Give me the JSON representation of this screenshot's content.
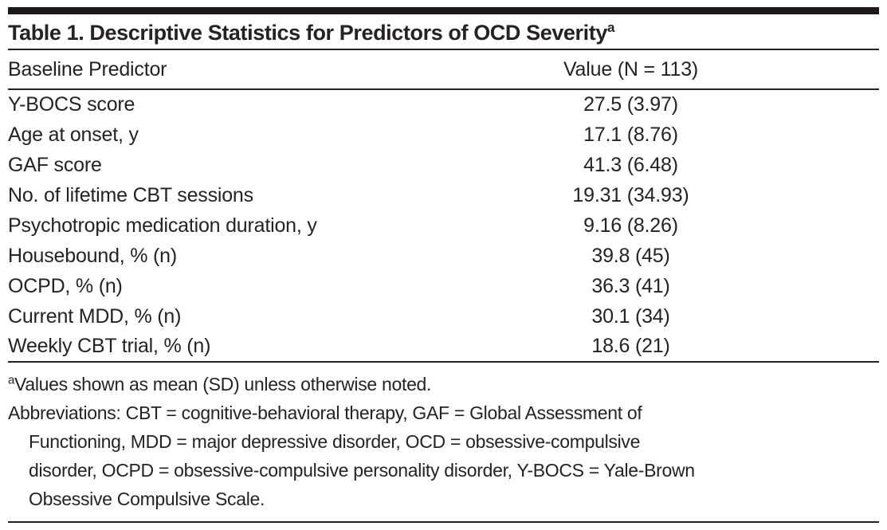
{
  "table": {
    "title": "Table 1. Descriptive Statistics for Predictors of OCD Severity",
    "title_superscript": "a",
    "columns": [
      "Baseline Predictor",
      "Value (N = 113)"
    ],
    "rows": [
      {
        "label": "Y-BOCS score",
        "value": "27.5 (3.97)"
      },
      {
        "label": "Age at onset, y",
        "value": "17.1 (8.76)"
      },
      {
        "label": "GAF score",
        "value": "41.3 (6.48)"
      },
      {
        "label": "No. of lifetime CBT sessions",
        "value": "19.31 (34.93)"
      },
      {
        "label": "Psychotropic medication duration, y",
        "value": "9.16 (8.26)"
      },
      {
        "label": "Housebound, % (n)",
        "value": "39.8 (45)"
      },
      {
        "label": "OCPD, % (n)",
        "value": "36.3 (41)"
      },
      {
        "label": "Current MDD, % (n)",
        "value": "30.1 (34)"
      },
      {
        "label": "Weekly CBT trial, % (n)",
        "value": "18.6 (21)"
      }
    ]
  },
  "footnotes": {
    "note_a_marker": "a",
    "note_a_text": "Values shown as mean (SD) unless otherwise noted.",
    "abbreviation_lines": [
      "Abbreviations: CBT = cognitive-behavioral therapy, GAF = Global Assessment of",
      "Functioning, MDD = major depressive disorder, OCD = obsessive-compulsive",
      "disorder, OCPD = obsessive-compulsive personality disorder, Y-BOCS = Yale-Brown",
      "Obsessive Compulsive Scale."
    ]
  },
  "colors": {
    "text": "#262223",
    "rule": "#262223",
    "top_bar": "#1d191a",
    "background": "#ffffff"
  }
}
